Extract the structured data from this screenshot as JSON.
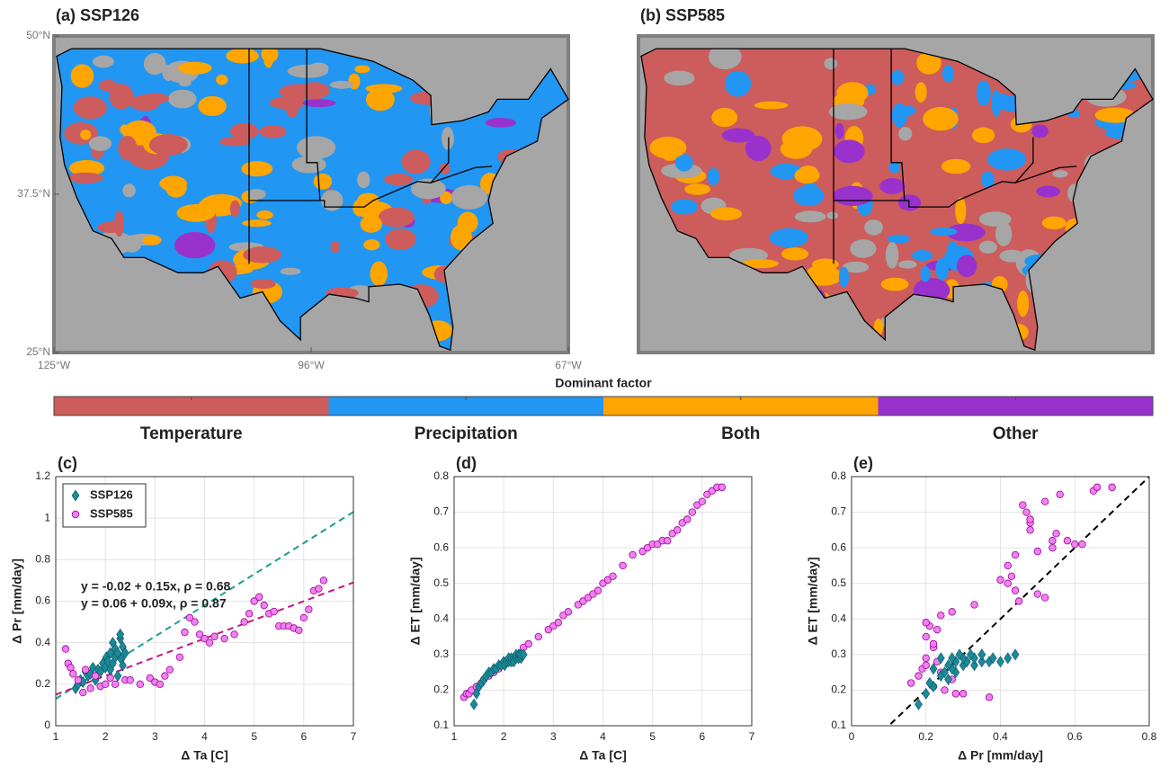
{
  "chart_data": [
    {
      "type": "map",
      "title": "(a) SSP126",
      "xlim": [
        -125,
        -67
      ],
      "ylim": [
        25,
        50
      ],
      "xticks": [
        {
          "value": -125,
          "label": "125°W"
        },
        {
          "value": -96,
          "label": "96°W"
        },
        {
          "value": -67,
          "label": "67°W"
        }
      ],
      "yticks": [
        {
          "value": 25,
          "label": "25°N"
        },
        {
          "value": 37.5,
          "label": "37.5°N"
        },
        {
          "value": 50,
          "label": "50°N"
        }
      ],
      "dominant": "Precipitation"
    },
    {
      "type": "map",
      "title": "(b) SSP585",
      "dominant": "Temperature"
    },
    {
      "type": "colorbar",
      "title": "Dominant factor",
      "categories": [
        "Temperature",
        "Precipitation",
        "Both",
        "Other"
      ],
      "colors": [
        "#cd5c5c",
        "#2196f3",
        "#ffa500",
        "#9932cc"
      ]
    },
    {
      "type": "scatter",
      "title": "(c)",
      "xlabel": "Δ Ta [C]",
      "ylabel": "Δ Pr [mm/day]",
      "xlim": [
        1,
        7
      ],
      "ylim": [
        0,
        1.2
      ],
      "xticks": [
        1,
        2,
        3,
        4,
        5,
        6,
        7
      ],
      "yticks": [
        0,
        0.2,
        0.4,
        0.6,
        0.8,
        1,
        1.2
      ],
      "grid": true,
      "legend": "upper left",
      "series": [
        {
          "name": "SSP126",
          "marker": "diamond",
          "color": "#1a8a9a",
          "x": [
            1.4,
            1.45,
            1.5,
            1.55,
            1.6,
            1.65,
            1.7,
            1.75,
            1.8,
            1.85,
            1.9,
            1.95,
            2.0,
            2.02,
            2.05,
            2.1,
            2.1,
            2.15,
            2.15,
            2.2,
            2.2,
            2.25,
            2.25,
            2.3,
            2.3,
            2.32,
            2.35,
            2.35,
            2.4
          ],
          "values": [
            0.18,
            0.2,
            0.22,
            0.21,
            0.26,
            0.24,
            0.25,
            0.28,
            0.22,
            0.27,
            0.26,
            0.3,
            0.28,
            0.33,
            0.31,
            0.35,
            0.27,
            0.4,
            0.3,
            0.33,
            0.37,
            0.24,
            0.35,
            0.42,
            0.44,
            0.32,
            0.38,
            0.29,
            0.35
          ]
        },
        {
          "name": "SSP585",
          "marker": "circle",
          "color": "#ee82ee",
          "x": [
            1.2,
            1.25,
            1.3,
            1.35,
            1.45,
            1.55,
            1.6,
            1.7,
            1.8,
            1.9,
            2.0,
            2.1,
            2.2,
            2.4,
            2.5,
            2.7,
            2.9,
            3.0,
            3.1,
            3.2,
            3.3,
            3.5,
            3.6,
            3.7,
            3.8,
            3.9,
            4.0,
            4.1,
            4.2,
            4.4,
            4.6,
            4.8,
            4.9,
            5.0,
            5.1,
            5.2,
            5.3,
            5.4,
            5.5,
            5.6,
            5.7,
            5.8,
            5.9,
            6.0,
            6.1,
            6.2,
            6.3,
            6.4
          ],
          "values": [
            0.37,
            0.3,
            0.28,
            0.25,
            0.22,
            0.16,
            0.27,
            0.18,
            0.24,
            0.19,
            0.2,
            0.23,
            0.2,
            0.22,
            0.22,
            0.2,
            0.23,
            0.21,
            0.2,
            0.24,
            0.27,
            0.33,
            0.45,
            0.52,
            0.5,
            0.44,
            0.42,
            0.4,
            0.43,
            0.42,
            0.44,
            0.5,
            0.54,
            0.6,
            0.62,
            0.58,
            0.54,
            0.55,
            0.48,
            0.48,
            0.48,
            0.47,
            0.46,
            0.52,
            0.56,
            0.65,
            0.66,
            0.7
          ]
        }
      ],
      "fits": [
        {
          "label": "y = -0.02 + 0.15x, ρ = 0.68",
          "intercept": -0.02,
          "slope": 0.15,
          "color": "#17a08c"
        },
        {
          "label": "y =  0.06 + 0.09x, ρ = 0.87",
          "intercept": 0.06,
          "slope": 0.09,
          "color": "#c71585"
        }
      ]
    },
    {
      "type": "scatter",
      "title": "(d)",
      "xlabel": "Δ Ta [C]",
      "ylabel": "Δ ET [mm/day]",
      "xlim": [
        1,
        7
      ],
      "ylim": [
        0.1,
        0.8
      ],
      "xticks": [
        1,
        2,
        3,
        4,
        5,
        6,
        7
      ],
      "yticks": [
        0.1,
        0.2,
        0.3,
        0.4,
        0.5,
        0.6,
        0.7,
        0.8
      ],
      "grid": true,
      "series": [
        {
          "marker": "circle",
          "color": "#ee82ee",
          "x": [
            1.2,
            1.25,
            1.3,
            1.35,
            1.45,
            1.55,
            1.6,
            1.7,
            1.8,
            1.9,
            2.0,
            2.1,
            2.2,
            2.4,
            2.5,
            2.7,
            2.9,
            3.0,
            3.1,
            3.2,
            3.3,
            3.5,
            3.6,
            3.7,
            3.8,
            3.9,
            4.0,
            4.1,
            4.2,
            4.4,
            4.6,
            4.8,
            4.9,
            5.0,
            5.1,
            5.2,
            5.3,
            5.4,
            5.5,
            5.6,
            5.7,
            5.8,
            5.9,
            6.0,
            6.1,
            6.2,
            6.3,
            6.4
          ],
          "values": [
            0.18,
            0.19,
            0.19,
            0.2,
            0.21,
            0.22,
            0.23,
            0.24,
            0.25,
            0.26,
            0.27,
            0.28,
            0.29,
            0.32,
            0.33,
            0.35,
            0.37,
            0.38,
            0.39,
            0.41,
            0.42,
            0.44,
            0.45,
            0.46,
            0.47,
            0.48,
            0.5,
            0.51,
            0.52,
            0.55,
            0.58,
            0.59,
            0.6,
            0.61,
            0.61,
            0.62,
            0.62,
            0.64,
            0.65,
            0.67,
            0.68,
            0.7,
            0.72,
            0.73,
            0.75,
            0.76,
            0.77,
            0.77
          ]
        },
        {
          "marker": "diamond",
          "color": "#1a8a9a",
          "x": [
            1.4,
            1.45,
            1.5,
            1.55,
            1.6,
            1.65,
            1.7,
            1.75,
            1.8,
            1.85,
            1.9,
            1.95,
            2.0,
            2.02,
            2.05,
            2.1,
            2.1,
            2.15,
            2.15,
            2.2,
            2.2,
            2.25,
            2.25,
            2.3,
            2.3,
            2.32,
            2.35,
            2.35,
            2.4
          ],
          "values": [
            0.16,
            0.19,
            0.21,
            0.22,
            0.23,
            0.24,
            0.25,
            0.25,
            0.26,
            0.26,
            0.27,
            0.27,
            0.28,
            0.27,
            0.28,
            0.28,
            0.29,
            0.28,
            0.29,
            0.29,
            0.28,
            0.29,
            0.3,
            0.29,
            0.3,
            0.3,
            0.29,
            0.3,
            0.3
          ]
        }
      ]
    },
    {
      "type": "scatter",
      "title": "(e)",
      "xlabel": "Δ Pr [mm/day]",
      "ylabel": "Δ ET [mm/day]",
      "xlim": [
        0,
        0.8
      ],
      "ylim": [
        0.1,
        0.8
      ],
      "xticks": [
        0,
        0.2,
        0.4,
        0.6,
        0.8
      ],
      "yticks": [
        0.1,
        0.2,
        0.3,
        0.4,
        0.5,
        0.6,
        0.7,
        0.8
      ],
      "grid": true,
      "series": [
        {
          "marker": "circle",
          "color": "#ee82ee",
          "x": [
            0.37,
            0.3,
            0.28,
            0.25,
            0.22,
            0.16,
            0.27,
            0.18,
            0.24,
            0.19,
            0.2,
            0.23,
            0.2,
            0.22,
            0.22,
            0.2,
            0.23,
            0.21,
            0.2,
            0.24,
            0.27,
            0.33,
            0.45,
            0.52,
            0.5,
            0.44,
            0.42,
            0.4,
            0.43,
            0.42,
            0.44,
            0.5,
            0.54,
            0.6,
            0.62,
            0.58,
            0.54,
            0.55,
            0.48,
            0.48,
            0.48,
            0.47,
            0.46,
            0.52,
            0.56,
            0.65,
            0.66,
            0.7
          ],
          "values": [
            0.18,
            0.19,
            0.19,
            0.2,
            0.21,
            0.22,
            0.23,
            0.24,
            0.25,
            0.26,
            0.27,
            0.28,
            0.29,
            0.32,
            0.33,
            0.35,
            0.37,
            0.38,
            0.39,
            0.41,
            0.42,
            0.44,
            0.45,
            0.46,
            0.47,
            0.48,
            0.5,
            0.51,
            0.52,
            0.55,
            0.58,
            0.59,
            0.6,
            0.61,
            0.61,
            0.62,
            0.62,
            0.64,
            0.65,
            0.67,
            0.68,
            0.7,
            0.72,
            0.73,
            0.75,
            0.76,
            0.77,
            0.77
          ]
        },
        {
          "marker": "diamond",
          "color": "#1a8a9a",
          "x": [
            0.18,
            0.2,
            0.22,
            0.21,
            0.26,
            0.24,
            0.25,
            0.28,
            0.22,
            0.27,
            0.26,
            0.3,
            0.28,
            0.33,
            0.31,
            0.35,
            0.27,
            0.4,
            0.3,
            0.33,
            0.37,
            0.24,
            0.35,
            0.42,
            0.44,
            0.32,
            0.38,
            0.29,
            0.35
          ],
          "values": [
            0.16,
            0.19,
            0.21,
            0.22,
            0.23,
            0.24,
            0.25,
            0.25,
            0.26,
            0.26,
            0.27,
            0.27,
            0.28,
            0.27,
            0.28,
            0.28,
            0.29,
            0.28,
            0.29,
            0.29,
            0.28,
            0.29,
            0.3,
            0.29,
            0.3,
            0.3,
            0.29,
            0.3,
            0.3
          ]
        }
      ],
      "fits": [
        {
          "intercept": 0,
          "slope": 1,
          "color": "#000000"
        }
      ]
    }
  ]
}
